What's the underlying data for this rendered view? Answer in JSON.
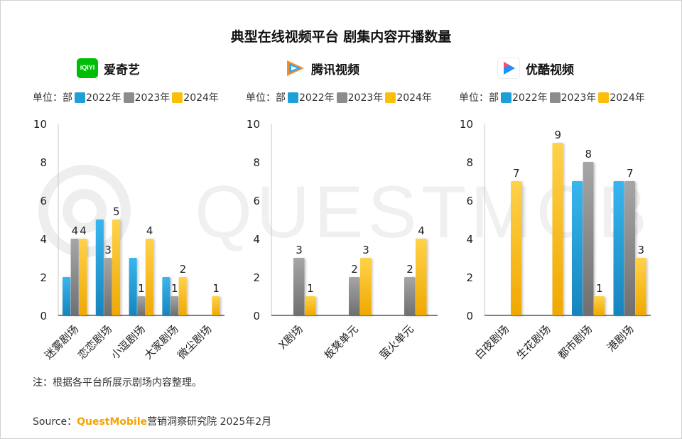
{
  "title": "典型在线视频平台 剧集内容开播数量",
  "watermark": "QUESTMOBILE",
  "legend": {
    "unit": "单位：部",
    "items": [
      {
        "label": "2022年",
        "color": "#1e9fd8"
      },
      {
        "label": "2023年",
        "color": "#8c8c8c"
      },
      {
        "label": "2024年",
        "color": "#fbbf0a"
      }
    ]
  },
  "platforms": [
    {
      "name": "爱奇艺",
      "logo": "iqiyi-logo",
      "logo_text": "iQIYI"
    },
    {
      "name": "腾讯视频",
      "logo": "tencent-video-logo"
    },
    {
      "name": "优酷视频",
      "logo": "youku-logo"
    }
  ],
  "chart_data": [
    {
      "type": "bar",
      "platform": "爱奇艺",
      "categories": [
        "迷雾剧场",
        "恋恋剧场",
        "小逗剧场",
        "大家剧场",
        "微尘剧场"
      ],
      "series": [
        {
          "name": "2022年",
          "values": [
            2,
            5,
            3,
            2,
            0
          ],
          "labels": [
            "",
            "",
            "",
            "",
            ""
          ]
        },
        {
          "name": "2023年",
          "values": [
            4,
            3,
            1,
            1,
            0
          ],
          "labels": [
            "4",
            "3",
            "1",
            "1",
            ""
          ]
        },
        {
          "name": "2024年",
          "values": [
            4,
            5,
            4,
            2,
            1
          ],
          "labels": [
            "4",
            "5",
            "4",
            "2",
            "1"
          ]
        }
      ],
      "ylim": [
        0,
        10
      ],
      "yticks": [
        0,
        2,
        4,
        6,
        8,
        10
      ]
    },
    {
      "type": "bar",
      "platform": "腾讯视频",
      "categories": [
        "X剧场",
        "板凳单元",
        "萤火单元"
      ],
      "series": [
        {
          "name": "2022年",
          "values": [
            0,
            0,
            0
          ],
          "labels": [
            "",
            "",
            ""
          ]
        },
        {
          "name": "2023年",
          "values": [
            3,
            2,
            2
          ],
          "labels": [
            "3",
            "2",
            "2"
          ]
        },
        {
          "name": "2024年",
          "values": [
            1,
            3,
            4
          ],
          "labels": [
            "1",
            "3",
            "4"
          ]
        }
      ],
      "ylim": [
        0,
        10
      ],
      "yticks": [
        0,
        2,
        4,
        6,
        8,
        10
      ]
    },
    {
      "type": "bar",
      "platform": "优酷视频",
      "categories": [
        "白夜剧场",
        "生花剧场",
        "都市剧场",
        "港剧场"
      ],
      "series": [
        {
          "name": "2022年",
          "values": [
            0,
            0,
            7,
            7
          ],
          "labels": [
            "",
            "",
            "",
            ""
          ]
        },
        {
          "name": "2023年",
          "values": [
            0,
            0,
            8,
            7
          ],
          "labels": [
            "",
            "",
            "8",
            "7"
          ]
        },
        {
          "name": "2024年",
          "values": [
            7,
            9,
            1,
            3
          ],
          "labels": [
            "7",
            "9",
            "1",
            "3"
          ]
        }
      ],
      "ylim": [
        0,
        10
      ],
      "yticks": [
        0,
        2,
        4,
        6,
        8,
        10
      ]
    }
  ],
  "note": "注：根据各平台所展示剧场内容整理。",
  "source": {
    "prefix": "Source：",
    "brand": "QuestMobile",
    "suffix": "营销洞察研究院 2025年2月"
  }
}
